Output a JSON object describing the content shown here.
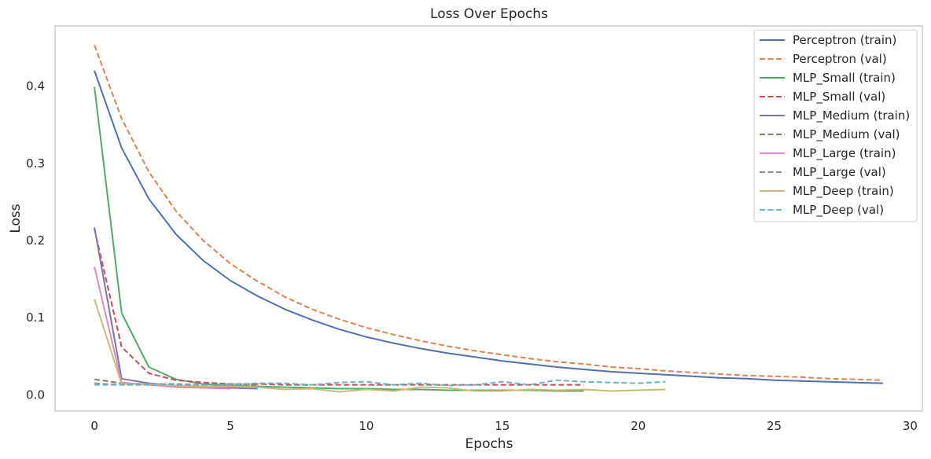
{
  "chart_data": {
    "type": "line",
    "title": "Loss Over Epochs",
    "xlabel": "Epochs",
    "ylabel": "Loss",
    "xlim": [
      -1.45,
      30.45
    ],
    "ylim": [
      -0.021,
      0.478
    ],
    "xticks": [
      0,
      5,
      10,
      15,
      20,
      25,
      30
    ],
    "yticks": [
      0.0,
      0.1,
      0.2,
      0.3,
      0.4
    ],
    "ytick_labels": [
      "0.0",
      "0.1",
      "0.2",
      "0.3",
      "0.4"
    ],
    "grid": false,
    "legend_position": "top-right",
    "series": [
      {
        "name": "Perceptron (train)",
        "color": "#4c72b0",
        "dash": "solid",
        "values": [
          0.42,
          0.32,
          0.254,
          0.208,
          0.174,
          0.148,
          0.128,
          0.111,
          0.097,
          0.085,
          0.075,
          0.067,
          0.06,
          0.054,
          0.049,
          0.044,
          0.04,
          0.036,
          0.033,
          0.03,
          0.028,
          0.026,
          0.024,
          0.022,
          0.021,
          0.019,
          0.018,
          0.017,
          0.016,
          0.015
        ]
      },
      {
        "name": "Perceptron (val)",
        "color": "#dd8452",
        "dash": "dashed",
        "values": [
          0.453,
          0.358,
          0.289,
          0.238,
          0.2,
          0.17,
          0.147,
          0.127,
          0.111,
          0.098,
          0.087,
          0.078,
          0.07,
          0.063,
          0.057,
          0.052,
          0.047,
          0.043,
          0.04,
          0.036,
          0.034,
          0.031,
          0.029,
          0.027,
          0.025,
          0.024,
          0.023,
          0.021,
          0.02,
          0.019
        ]
      },
      {
        "name": "MLP_Small (train)",
        "color": "#55a868",
        "dash": "solid",
        "values": [
          0.399,
          0.106,
          0.036,
          0.02,
          0.014,
          0.012,
          0.011,
          0.01,
          0.009,
          0.008,
          0.008,
          0.007,
          0.007,
          0.006,
          0.006,
          0.006,
          0.006,
          0.005,
          0.005
        ]
      },
      {
        "name": "MLP_Small (val)",
        "color": "#c44e52",
        "dash": "dashed",
        "values": [
          0.215,
          0.062,
          0.028,
          0.019,
          0.016,
          0.014,
          0.014,
          0.013,
          0.013,
          0.013,
          0.013,
          0.013,
          0.013,
          0.013,
          0.013,
          0.013,
          0.013,
          0.013,
          0.013
        ]
      },
      {
        "name": "MLP_Medium (train)",
        "color": "#8172b3",
        "dash": "solid",
        "values": [
          0.217,
          0.021,
          0.015,
          0.012,
          0.01,
          0.009,
          0.008
        ]
      },
      {
        "name": "MLP_Medium (val)",
        "color": "#937860",
        "dash": "dashed",
        "values": [
          0.02,
          0.015,
          0.014,
          0.014,
          0.013,
          0.014,
          0.013
        ]
      },
      {
        "name": "MLP_Large (train)",
        "color": "#da8bc3",
        "dash": "solid",
        "values": [
          0.166,
          0.016,
          0.013,
          0.01,
          0.009,
          0.008
        ]
      },
      {
        "name": "MLP_Large (val)",
        "color": "#8c8c8c",
        "dash": "dashed",
        "values": [
          0.015,
          0.013,
          0.013,
          0.013,
          0.012,
          0.013
        ]
      },
      {
        "name": "MLP_Deep (train)",
        "color": "#ccb974",
        "dash": "solid",
        "values": [
          0.124,
          0.014,
          0.014,
          0.012,
          0.011,
          0.011,
          0.01,
          0.007,
          0.008,
          0.004,
          0.007,
          0.005,
          0.01,
          0.009,
          0.005,
          0.005,
          0.007,
          0.006,
          0.007,
          0.005,
          0.006,
          0.007
        ]
      },
      {
        "name": "MLP_Deep (val)",
        "color": "#64b5cd",
        "dash": "dashed",
        "values": [
          0.013,
          0.013,
          0.014,
          0.013,
          0.013,
          0.013,
          0.015,
          0.015,
          0.013,
          0.016,
          0.017,
          0.013,
          0.015,
          0.012,
          0.013,
          0.017,
          0.013,
          0.019,
          0.017,
          0.016,
          0.015,
          0.017
        ]
      }
    ]
  }
}
